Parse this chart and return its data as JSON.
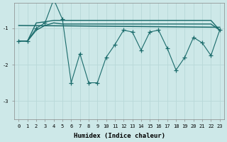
{
  "xlabel": "Humidex (Indice chaleur)",
  "background_color": "#cde8e8",
  "grid_color": "#b8d8d8",
  "line_color": "#1a6b6b",
  "xlim": [
    -0.5,
    23.5
  ],
  "ylim": [
    -3.5,
    -0.3
  ],
  "yticks": [
    -3,
    -2,
    -1
  ],
  "xticks": [
    0,
    1,
    2,
    3,
    4,
    5,
    6,
    7,
    8,
    9,
    10,
    11,
    12,
    13,
    14,
    15,
    16,
    17,
    18,
    19,
    20,
    21,
    22,
    23
  ],
  "main_x": [
    0,
    1,
    2,
    3,
    4,
    5,
    6,
    7,
    8,
    9,
    10,
    11,
    12,
    13,
    14,
    15,
    16,
    17,
    18,
    19,
    20,
    21,
    22,
    23
  ],
  "main_y": [
    -1.35,
    -1.35,
    -1.0,
    -0.85,
    -0.2,
    -0.75,
    -2.5,
    -1.7,
    -2.5,
    -2.5,
    -1.8,
    -1.45,
    -1.05,
    -1.1,
    -1.6,
    -1.1,
    -1.05,
    -1.55,
    -2.15,
    -1.8,
    -1.25,
    -1.4,
    -1.75,
    -1.05
  ],
  "trend1_x": [
    0,
    1,
    2,
    3,
    4,
    5,
    6,
    7,
    8,
    9,
    10,
    11,
    12,
    13,
    14,
    15,
    16,
    17,
    18,
    19,
    20,
    21,
    22,
    23
  ],
  "trend1_y": [
    -1.35,
    -1.35,
    -0.85,
    -0.82,
    -0.78,
    -0.78,
    -0.78,
    -0.78,
    -0.78,
    -0.78,
    -0.78,
    -0.78,
    -0.78,
    -0.78,
    -0.78,
    -0.78,
    -0.78,
    -0.78,
    -0.78,
    -0.78,
    -0.78,
    -0.78,
    -0.78,
    -1.05
  ],
  "trend2_x": [
    0,
    1,
    2,
    3,
    4,
    5,
    6,
    7,
    8,
    9,
    10,
    11,
    12,
    13,
    14,
    15,
    16,
    17,
    18,
    19,
    20,
    21,
    22,
    23
  ],
  "trend2_y": [
    -1.35,
    -1.35,
    -1.05,
    -0.92,
    -0.85,
    -0.88,
    -0.88,
    -0.88,
    -0.88,
    -0.88,
    -0.88,
    -0.88,
    -0.88,
    -0.88,
    -0.88,
    -0.88,
    -0.88,
    -0.88,
    -0.88,
    -0.88,
    -0.88,
    -0.88,
    -0.88,
    -1.05
  ],
  "trend3_x": [
    0,
    23
  ],
  "trend3_y": [
    -0.92,
    -0.97
  ]
}
